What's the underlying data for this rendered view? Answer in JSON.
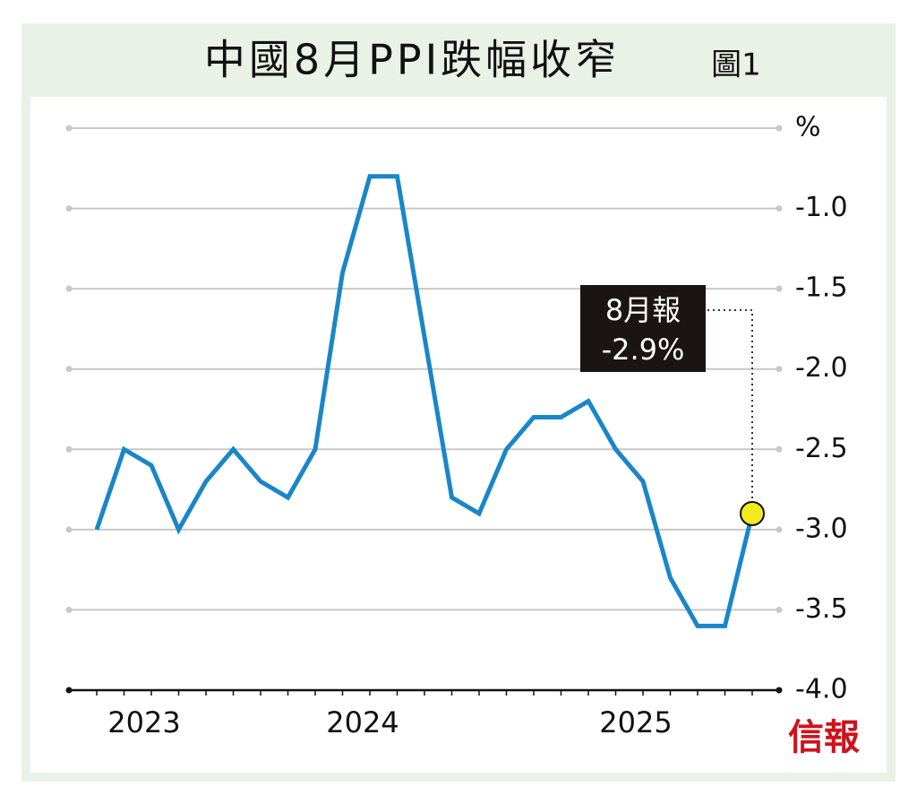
{
  "chart_data": {
    "type": "line",
    "title": "中國8月PPI跌幅收窄",
    "figure_label": "圖1",
    "source": "信報",
    "categories": [
      null,
      null,
      "2023",
      null,
      null,
      null,
      null,
      null,
      null,
      null,
      "2024",
      null,
      null,
      null,
      null,
      null,
      null,
      null,
      null,
      null,
      "2025",
      null,
      null,
      null,
      null
    ],
    "series": [
      {
        "name": "PPI",
        "color": "#1a86c8",
        "values": [
          -3.0,
          -2.5,
          -2.6,
          -3.0,
          -2.7,
          -2.5,
          -2.7,
          -2.8,
          -2.5,
          -1.4,
          -0.8,
          -0.8,
          -1.8,
          -2.8,
          -2.9,
          -2.5,
          -2.3,
          -2.3,
          -2.2,
          -2.5,
          -2.7,
          -3.3,
          -3.6,
          -3.6,
          -2.9
        ]
      }
    ],
    "annotation": {
      "title": "8月報",
      "label": "-2.9%"
    },
    "ylim": [
      -4.0,
      -0.5
    ],
    "yticks": [
      {
        "value": -4.0,
        "label": "-4.0"
      },
      {
        "value": -3.5,
        "label": "-3.5"
      },
      {
        "value": -3.0,
        "label": "-3.0"
      },
      {
        "value": -2.5,
        "label": "-2.5"
      },
      {
        "value": -2.0,
        "label": "-2.0"
      },
      {
        "value": -1.5,
        "label": "-1.5"
      },
      {
        "value": -1.0,
        "label": "-1.0"
      },
      {
        "value": -0.5,
        "label": "%"
      }
    ],
    "grid": true
  }
}
